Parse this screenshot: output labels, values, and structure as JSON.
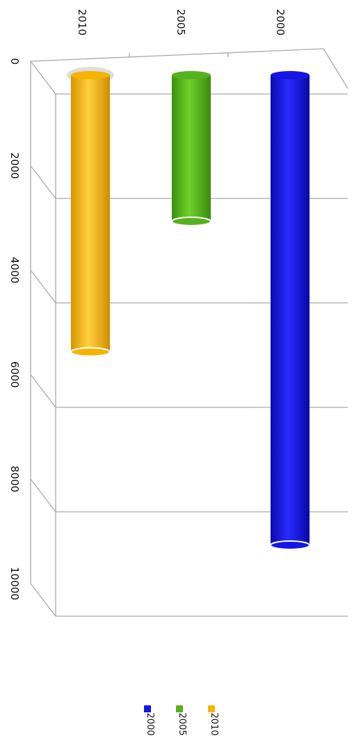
{
  "chart_data": {
    "type": "bar",
    "orientation": "horizontal-3d-cylinder",
    "categories": [
      "2000",
      "2005",
      "2010"
    ],
    "values": [
      9000,
      2800,
      5300
    ],
    "xlim": [
      0,
      10000
    ],
    "xticks": [
      "0",
      "2000",
      "4000",
      "6000",
      "8000",
      "10000"
    ],
    "grid": true,
    "legend": {
      "position": "bottom",
      "entries": [
        {
          "label": "2000",
          "color": "#1515e6"
        },
        {
          "label": "2005",
          "color": "#55b21c"
        },
        {
          "label": "2010",
          "color": "#f5b400"
        }
      ]
    },
    "colors": {
      "2000": "#1515e6",
      "2005": "#55b21c",
      "2010": "#f5b400"
    }
  }
}
